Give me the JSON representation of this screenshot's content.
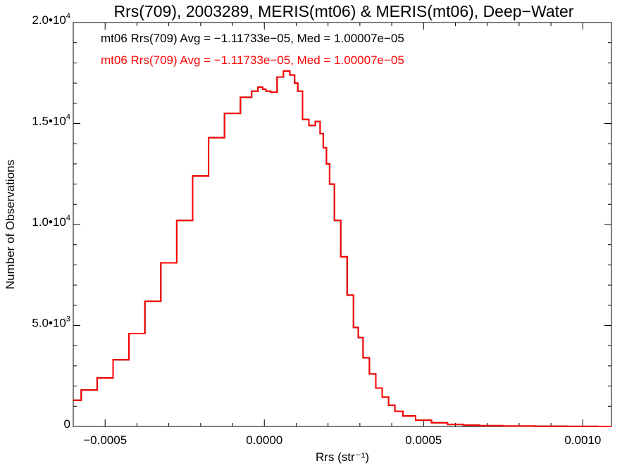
{
  "chart_data": {
    "type": "line",
    "title": "Rrs(709), 2003289, MERIS(mt06) & MERIS(mt06), Deep−Water",
    "xlabel": "Rrs (str⁻¹)",
    "ylabel": "Number of Observations",
    "xlim": [
      -0.0006,
      0.00109
    ],
    "ylim": [
      0,
      20000
    ],
    "grid": false,
    "step_style": true,
    "legend": [
      {
        "text": "mt06 Rrs(709) Avg = −1.11733e−05, Med = 1.00007e−05",
        "color": "#000000"
      },
      {
        "text": "mt06 Rrs(709) Avg = −1.11733e−05, Med = 1.00007e−05",
        "color": "#ff0000"
      }
    ],
    "x_ticks": [
      {
        "value": -0.0005,
        "label": "−0.0005"
      },
      {
        "value": 0.0,
        "label": "0.0000"
      },
      {
        "value": 0.0005,
        "label": "0.0005"
      },
      {
        "value": 0.001,
        "label": "0.0010"
      }
    ],
    "y_ticks": [
      {
        "value": 0,
        "base": "0",
        "exp": ""
      },
      {
        "value": 5000,
        "base": "5.0•10",
        "exp": "3"
      },
      {
        "value": 10000,
        "base": "1.0•10",
        "exp": "4"
      },
      {
        "value": 15000,
        "base": "1.5•10",
        "exp": "4"
      },
      {
        "value": 20000,
        "base": "2.0•10",
        "exp": "4"
      }
    ],
    "series": [
      {
        "color": "#000000",
        "x": [
          -0.0006,
          -0.00055,
          -0.0005,
          -0.00045,
          -0.0004,
          -0.00035,
          -0.0003,
          -0.00025,
          -0.0002,
          -0.00015,
          -0.0001,
          -5e-05,
          -3e-05,
          -1e-05,
          0.0,
          1e-05,
          3e-05,
          5e-05,
          7e-05,
          9e-05,
          0.0001,
          0.00011,
          0.00013,
          0.00015,
          0.00017,
          0.00018,
          0.00019,
          0.0002,
          0.00021,
          0.00023,
          0.00025,
          0.00027,
          0.00029,
          0.0003,
          0.00032,
          0.00034,
          0.00036,
          0.00038,
          0.0004,
          0.00042,
          0.00045,
          0.0005,
          0.00055,
          0.0006,
          0.00065,
          0.0007,
          0.0008,
          0.0009,
          0.001,
          0.00109
        ],
        "y": [
          1300,
          1800,
          2400,
          3300,
          4600,
          6200,
          8100,
          10200,
          12400,
          14300,
          15500,
          16300,
          16600,
          16800,
          16700,
          16600,
          16550,
          17300,
          17600,
          17400,
          17000,
          16600,
          15200,
          14900,
          15100,
          14500,
          13800,
          13000,
          12000,
          10200,
          8400,
          6500,
          4900,
          4400,
          3400,
          2600,
          1900,
          1450,
          1050,
          750,
          520,
          310,
          180,
          100,
          60,
          40,
          20,
          10,
          5,
          0
        ]
      },
      {
        "color": "#ff0000",
        "x": [
          -0.0006,
          -0.00055,
          -0.0005,
          -0.00045,
          -0.0004,
          -0.00035,
          -0.0003,
          -0.00025,
          -0.0002,
          -0.00015,
          -0.0001,
          -5e-05,
          -3e-05,
          -1e-05,
          0.0,
          1e-05,
          3e-05,
          5e-05,
          7e-05,
          9e-05,
          0.0001,
          0.00011,
          0.00013,
          0.00015,
          0.00017,
          0.00018,
          0.00019,
          0.0002,
          0.00021,
          0.00023,
          0.00025,
          0.00027,
          0.00029,
          0.0003,
          0.00032,
          0.00034,
          0.00036,
          0.00038,
          0.0004,
          0.00042,
          0.00045,
          0.0005,
          0.00055,
          0.0006,
          0.00065,
          0.0007,
          0.0008,
          0.0009,
          0.001,
          0.00109
        ],
        "y": [
          1300,
          1800,
          2400,
          3300,
          4600,
          6200,
          8100,
          10200,
          12400,
          14300,
          15500,
          16300,
          16600,
          16800,
          16700,
          16600,
          16550,
          17300,
          17600,
          17400,
          17000,
          16600,
          15200,
          14900,
          15100,
          14500,
          13800,
          13000,
          12000,
          10200,
          8400,
          6500,
          4900,
          4400,
          3400,
          2600,
          1900,
          1450,
          1050,
          750,
          520,
          310,
          180,
          100,
          60,
          40,
          20,
          10,
          5,
          0
        ]
      }
    ]
  }
}
